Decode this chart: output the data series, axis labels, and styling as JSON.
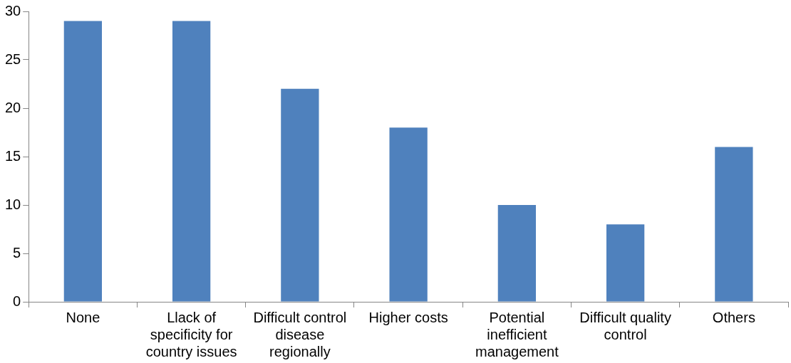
{
  "chart_data": {
    "type": "bar",
    "categories": [
      "None",
      "Llack of specificity for country issues",
      "Difficult control disease regionally",
      "Higher costs",
      "Potential inefficient management",
      "Difficult quality control",
      "Others"
    ],
    "values": [
      29,
      29,
      22,
      18,
      10,
      8,
      16
    ],
    "color": "#4f81bd",
    "ylim": [
      0,
      30
    ],
    "yticks": [
      0,
      5,
      10,
      15,
      20,
      25,
      30
    ],
    "grid": false,
    "legend": false
  }
}
